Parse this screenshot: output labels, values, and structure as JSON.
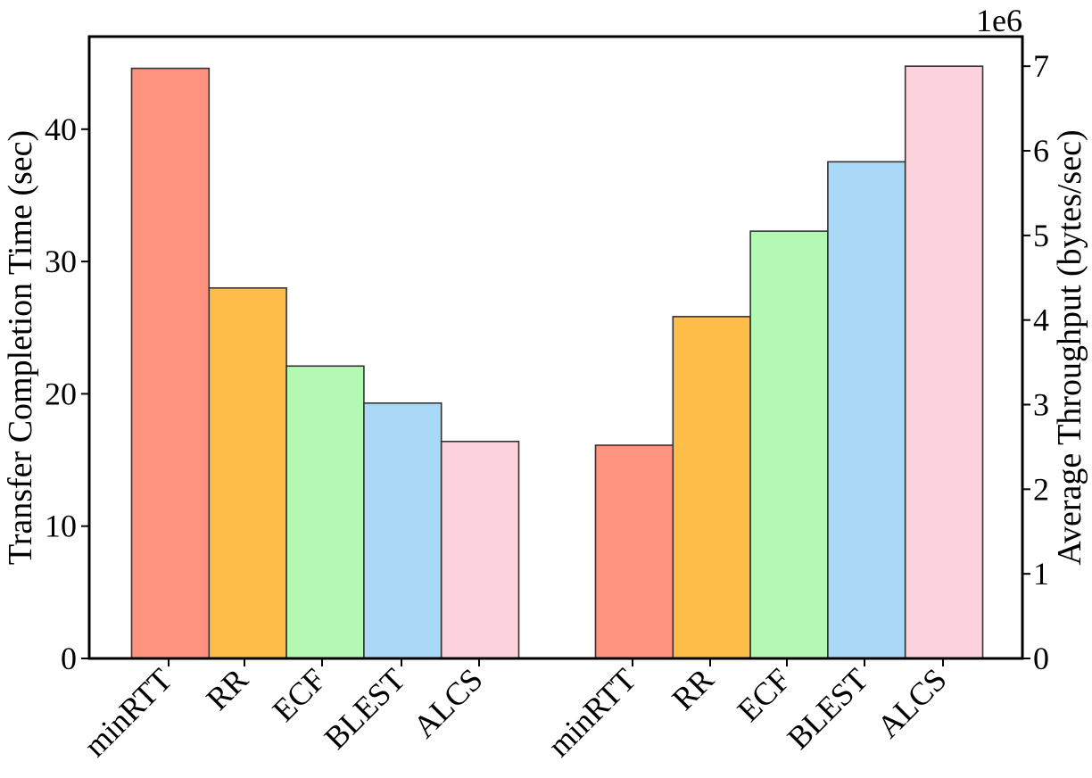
{
  "chart_data": {
    "type": "bar",
    "categories": [
      "minRTT",
      "RR",
      "ECF",
      "BLEST",
      "ALCS",
      "minRTT",
      "RR",
      "ECF",
      "BLEST",
      "ALCS"
    ],
    "left_axis": {
      "label": "Transfer Completion Time (sec)",
      "ylim": [
        0,
        47
      ],
      "ticks": [
        0,
        10,
        20,
        30,
        40
      ],
      "values": [
        44.6,
        28.0,
        22.1,
        19.3,
        16.4
      ]
    },
    "right_axis": {
      "label": "Average Throughput (bytes/sec)",
      "scale_label": "1e6",
      "ylim": [
        0,
        7.35
      ],
      "ticks": [
        0,
        1,
        2,
        3,
        4,
        5,
        6,
        7
      ],
      "values": [
        2.52,
        4.04,
        5.05,
        5.87,
        7.0
      ]
    },
    "colors": [
      "#ff9380",
      "#ffbd4a",
      "#b3f9b3",
      "#aad9f8",
      "#fcd3dd"
    ],
    "edge_color": "#333333",
    "grid": false
  }
}
